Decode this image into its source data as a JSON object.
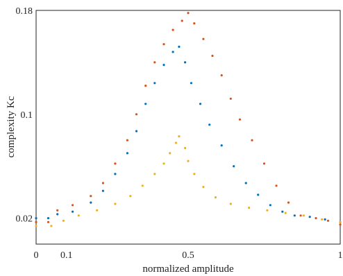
{
  "chart_data": {
    "type": "scatter",
    "title": "",
    "xlabel": "normalized amplitude",
    "ylabel": "complexity Kc",
    "xlim": [
      0,
      1
    ],
    "ylim": [
      0.0,
      0.18
    ],
    "xticks": [
      {
        "value": 0,
        "label": "0"
      },
      {
        "value": 0.1,
        "label": "0.1"
      },
      {
        "value": 0.5,
        "label": "0.5"
      },
      {
        "value": 1,
        "label": "1"
      }
    ],
    "yticks": [
      {
        "value": 0.02,
        "label": "0.02"
      },
      {
        "value": 0.1,
        "label": "0.1"
      },
      {
        "value": 0.18,
        "label": "0.18"
      }
    ],
    "grid": false,
    "series": [
      {
        "color": "#d95319",
        "points": [
          [
            0.0,
            0.017
          ],
          [
            0.04,
            0.017
          ],
          [
            0.07,
            0.026
          ],
          [
            0.12,
            0.03
          ],
          [
            0.18,
            0.037
          ],
          [
            0.22,
            0.047
          ],
          [
            0.26,
            0.062
          ],
          [
            0.3,
            0.08
          ],
          [
            0.33,
            0.1
          ],
          [
            0.36,
            0.122
          ],
          [
            0.39,
            0.14
          ],
          [
            0.42,
            0.154
          ],
          [
            0.45,
            0.165
          ],
          [
            0.48,
            0.172
          ],
          [
            0.5,
            0.178
          ],
          [
            0.52,
            0.17
          ],
          [
            0.55,
            0.158
          ],
          [
            0.58,
            0.145
          ],
          [
            0.61,
            0.13
          ],
          [
            0.64,
            0.112
          ],
          [
            0.67,
            0.096
          ],
          [
            0.71,
            0.08
          ],
          [
            0.75,
            0.062
          ],
          [
            0.79,
            0.045
          ],
          [
            0.83,
            0.032
          ],
          [
            0.87,
            0.022
          ],
          [
            0.92,
            0.02
          ],
          [
            0.96,
            0.018
          ],
          [
            1.0,
            0.015
          ]
        ]
      },
      {
        "color": "#0072bd",
        "points": [
          [
            0.0,
            0.02
          ],
          [
            0.04,
            0.02
          ],
          [
            0.07,
            0.023
          ],
          [
            0.12,
            0.025
          ],
          [
            0.18,
            0.032
          ],
          [
            0.22,
            0.041
          ],
          [
            0.26,
            0.054
          ],
          [
            0.3,
            0.07
          ],
          [
            0.33,
            0.087
          ],
          [
            0.36,
            0.108
          ],
          [
            0.39,
            0.124
          ],
          [
            0.42,
            0.138
          ],
          [
            0.45,
            0.148
          ],
          [
            0.47,
            0.152
          ],
          [
            0.49,
            0.14
          ],
          [
            0.51,
            0.124
          ],
          [
            0.54,
            0.108
          ],
          [
            0.57,
            0.092
          ],
          [
            0.61,
            0.076
          ],
          [
            0.65,
            0.06
          ],
          [
            0.69,
            0.047
          ],
          [
            0.73,
            0.038
          ],
          [
            0.77,
            0.03
          ],
          [
            0.81,
            0.025
          ],
          [
            0.85,
            0.022
          ],
          [
            0.9,
            0.021
          ],
          [
            0.95,
            0.019
          ],
          [
            1.0,
            0.017
          ]
        ]
      },
      {
        "color": "#edb120",
        "points": [
          [
            0.0,
            0.014
          ],
          [
            0.05,
            0.014
          ],
          [
            0.09,
            0.018
          ],
          [
            0.14,
            0.022
          ],
          [
            0.2,
            0.026
          ],
          [
            0.26,
            0.031
          ],
          [
            0.31,
            0.037
          ],
          [
            0.35,
            0.045
          ],
          [
            0.39,
            0.054
          ],
          [
            0.42,
            0.062
          ],
          [
            0.44,
            0.07
          ],
          [
            0.46,
            0.078
          ],
          [
            0.47,
            0.083
          ],
          [
            0.49,
            0.074
          ],
          [
            0.5,
            0.064
          ],
          [
            0.52,
            0.054
          ],
          [
            0.55,
            0.044
          ],
          [
            0.59,
            0.036
          ],
          [
            0.64,
            0.031
          ],
          [
            0.7,
            0.028
          ],
          [
            0.76,
            0.026
          ],
          [
            0.82,
            0.024
          ],
          [
            0.88,
            0.022
          ],
          [
            0.94,
            0.019
          ],
          [
            1.0,
            0.017
          ]
        ]
      }
    ]
  }
}
